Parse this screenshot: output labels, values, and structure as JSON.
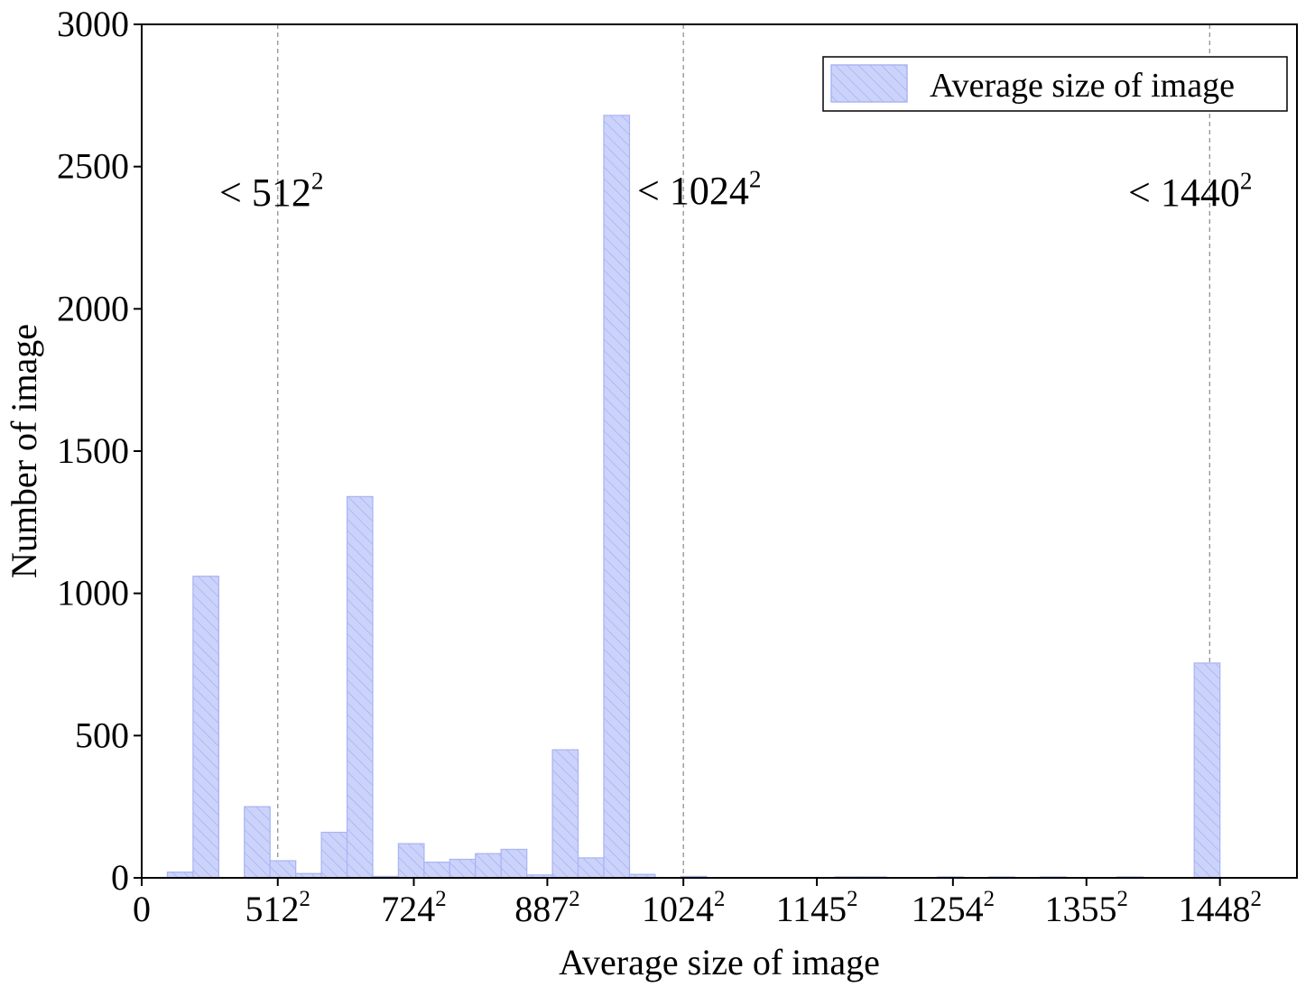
{
  "chart_data": {
    "type": "bar",
    "xlabel": "Average size of image",
    "ylabel": "Number of image",
    "ylim": [
      0,
      3000
    ],
    "yticks": [
      0,
      500,
      1000,
      1500,
      2000,
      2500,
      3000
    ],
    "x_domain": [
      0,
      45
    ],
    "xticks": [
      {
        "at": 0,
        "base": "0",
        "sup": ""
      },
      {
        "at": 5.3,
        "base": "512",
        "sup": "2"
      },
      {
        "at": 10.6,
        "base": "724",
        "sup": "2"
      },
      {
        "at": 15.8,
        "base": "887",
        "sup": "2"
      },
      {
        "at": 21.1,
        "base": "1024",
        "sup": "2"
      },
      {
        "at": 26.3,
        "base": "1145",
        "sup": "2"
      },
      {
        "at": 31.6,
        "base": "1254",
        "sup": "2"
      },
      {
        "at": 36.8,
        "base": "1355",
        "sup": "2"
      },
      {
        "at": 42.0,
        "base": "1448",
        "sup": "2"
      }
    ],
    "series": [
      {
        "name": "Average size of image",
        "color": "#ccd3fb",
        "edge_color": "#aab6f2",
        "hatch": "diagonal",
        "bins": [
          {
            "x0": 1,
            "x1": 2,
            "value": 20
          },
          {
            "x0": 2,
            "x1": 3,
            "value": 1060
          },
          {
            "x0": 4,
            "x1": 5,
            "value": 250
          },
          {
            "x0": 5,
            "x1": 6,
            "value": 60
          },
          {
            "x0": 6,
            "x1": 7,
            "value": 15
          },
          {
            "x0": 7,
            "x1": 8,
            "value": 160
          },
          {
            "x0": 8,
            "x1": 9,
            "value": 1340
          },
          {
            "x0": 9,
            "x1": 10,
            "value": 5
          },
          {
            "x0": 10,
            "x1": 11,
            "value": 120
          },
          {
            "x0": 11,
            "x1": 12,
            "value": 55
          },
          {
            "x0": 12,
            "x1": 13,
            "value": 65
          },
          {
            "x0": 13,
            "x1": 14,
            "value": 85
          },
          {
            "x0": 14,
            "x1": 15,
            "value": 100
          },
          {
            "x0": 15,
            "x1": 16,
            "value": 10
          },
          {
            "x0": 16,
            "x1": 17,
            "value": 450
          },
          {
            "x0": 17,
            "x1": 18,
            "value": 70
          },
          {
            "x0": 18,
            "x1": 19,
            "value": 2680
          },
          {
            "x0": 19,
            "x1": 20,
            "value": 12
          },
          {
            "x0": 21,
            "x1": 22,
            "value": 5
          },
          {
            "x0": 27,
            "x1": 28,
            "value": 2
          },
          {
            "x0": 28,
            "x1": 29,
            "value": 2
          },
          {
            "x0": 31,
            "x1": 32,
            "value": 2
          },
          {
            "x0": 33,
            "x1": 34,
            "value": 2
          },
          {
            "x0": 35,
            "x1": 36,
            "value": 2
          },
          {
            "x0": 38,
            "x1": 39,
            "value": 3
          },
          {
            "x0": 41,
            "x1": 42,
            "value": 755
          }
        ]
      }
    ],
    "reference_lines": [
      {
        "at": 5.3,
        "label": "< 512",
        "sup": "2",
        "style": "dashed",
        "color": "#888888"
      },
      {
        "at": 21.1,
        "label": "< 1024",
        "sup": "2",
        "style": "dashed",
        "color": "#888888"
      },
      {
        "at": 41.6,
        "label": "< 1440",
        "sup": "2",
        "style": "dashed",
        "color": "#888888"
      }
    ],
    "legend": {
      "position": "top-right",
      "entries": [
        "Average size of image"
      ]
    },
    "grid": false
  }
}
